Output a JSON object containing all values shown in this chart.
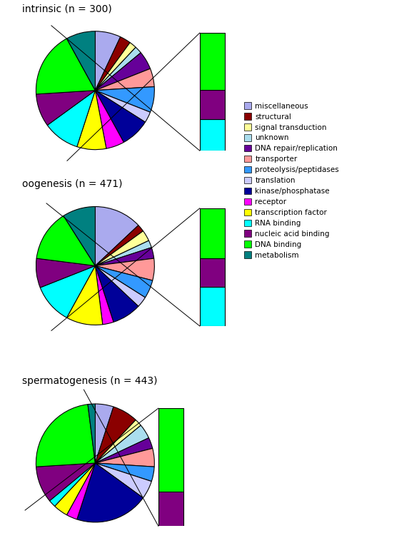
{
  "categories": [
    "miscellaneous",
    "structural",
    "signal transduction",
    "unknown",
    "DNA repair/replication",
    "transporter",
    "proteolysis/peptidases",
    "translation",
    "kinase/phosphatase",
    "receptor",
    "transcription factor",
    "RNA binding",
    "nucleic acid binding",
    "DNA binding",
    "metabolism"
  ],
  "colors": [
    "#AAAAEE",
    "#8B0000",
    "#FFFF99",
    "#AADDEE",
    "#660099",
    "#FF9999",
    "#3399FF",
    "#CCCCFF",
    "#000099",
    "#FF00FF",
    "#FFFF00",
    "#00FFFF",
    "#800080",
    "#00FF00",
    "#008080"
  ],
  "intrinsic": {
    "title": "intrinsic (n = 300)",
    "slices": [
      7,
      3,
      2,
      2,
      5,
      5,
      7,
      3,
      8,
      5,
      8,
      10,
      9,
      18,
      8
    ],
    "bar_slices": [
      10,
      9,
      18
    ],
    "bar_cats_indices": [
      11,
      12,
      13
    ]
  },
  "oogenesis": {
    "title": "oogenesis (n = 471)",
    "slices": [
      13,
      2,
      3,
      2,
      3,
      6,
      5,
      3,
      8,
      3,
      10,
      11,
      8,
      14,
      9
    ],
    "bar_slices": [
      11,
      8,
      14
    ],
    "bar_cats_indices": [
      11,
      12,
      13
    ]
  },
  "spermatogenesis": {
    "title": "spermatogenesis (n = 443)",
    "slices": [
      5,
      7,
      2,
      4,
      3,
      5,
      4,
      5,
      20,
      3,
      4,
      2,
      10,
      24,
      2
    ],
    "bar_slices": [
      10,
      24
    ],
    "bar_cats_indices": [
      12,
      13
    ]
  },
  "legend_labels": [
    "miscellaneous",
    "structural",
    "signal transduction",
    "unknown",
    "DNA repair/replication",
    "transporter",
    "proteolysis/peptidases",
    "translation",
    "kinase/phosphatase",
    "receptor",
    "transcription factor",
    "RNA binding",
    "nucleic acid binding",
    "DNA binding",
    "metabolism"
  ]
}
